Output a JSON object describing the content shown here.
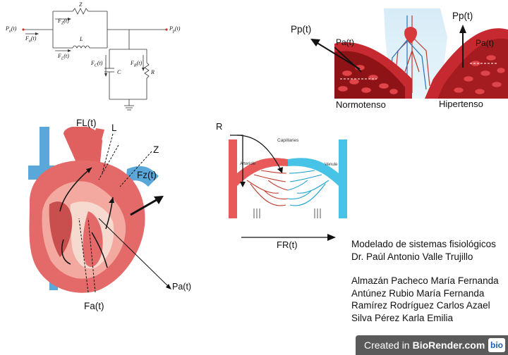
{
  "circuit": {
    "pa": "P",
    "pa_sub": "a",
    "pa_t": "(t)",
    "fa": "F",
    "fa_sub": "a",
    "fa_t": "(t)",
    "z": "Z",
    "fz": "F",
    "fz_sub": "Z",
    "fz_t": "(t)",
    "l": "L",
    "fl": "F",
    "fl_sub": "L",
    "fl_t": "(t)",
    "pp": "P",
    "pp_sub": "p",
    "pp_t": "(t)",
    "fc": "F",
    "fc_sub": "C",
    "fc_t": "(t)",
    "c": "C",
    "fr": "F",
    "fr_sub": "R",
    "fr_t": "(t)",
    "r": "R"
  },
  "vessel": {
    "pp_left": "Pp(t)",
    "pa_left": "Pa(t)",
    "pp_right": "Pp(t)",
    "pa_right": "Pa(t)",
    "normotenso": "Normotenso",
    "hipertenso": "Hipertenso"
  },
  "heart": {
    "fl": "FL(t)",
    "l": "L",
    "z": "Z",
    "fz": "Fz(t)",
    "pa": "Pa(t)",
    "fa": "Fa(t)"
  },
  "capillary": {
    "r": "R",
    "capilares": "Capillaries",
    "arteriola": "Arteriole",
    "venula": "Venule",
    "fr": "FR(t)"
  },
  "credits": {
    "line1": "Modelado de sistemas fisiológicos",
    "line2": "Dr. Paúl Antonio Valle Trujillo",
    "authors": [
      "Almazán Pacheco María Fernanda",
      "Antúnez Rubio María Fernanda",
      "Ramírez Rodríguez Carlos Azael",
      "Silva Pérez Karla Emilia"
    ]
  },
  "badge": {
    "created_in": "Created in",
    "brand": "BioRender.com",
    "logo": "bio"
  }
}
